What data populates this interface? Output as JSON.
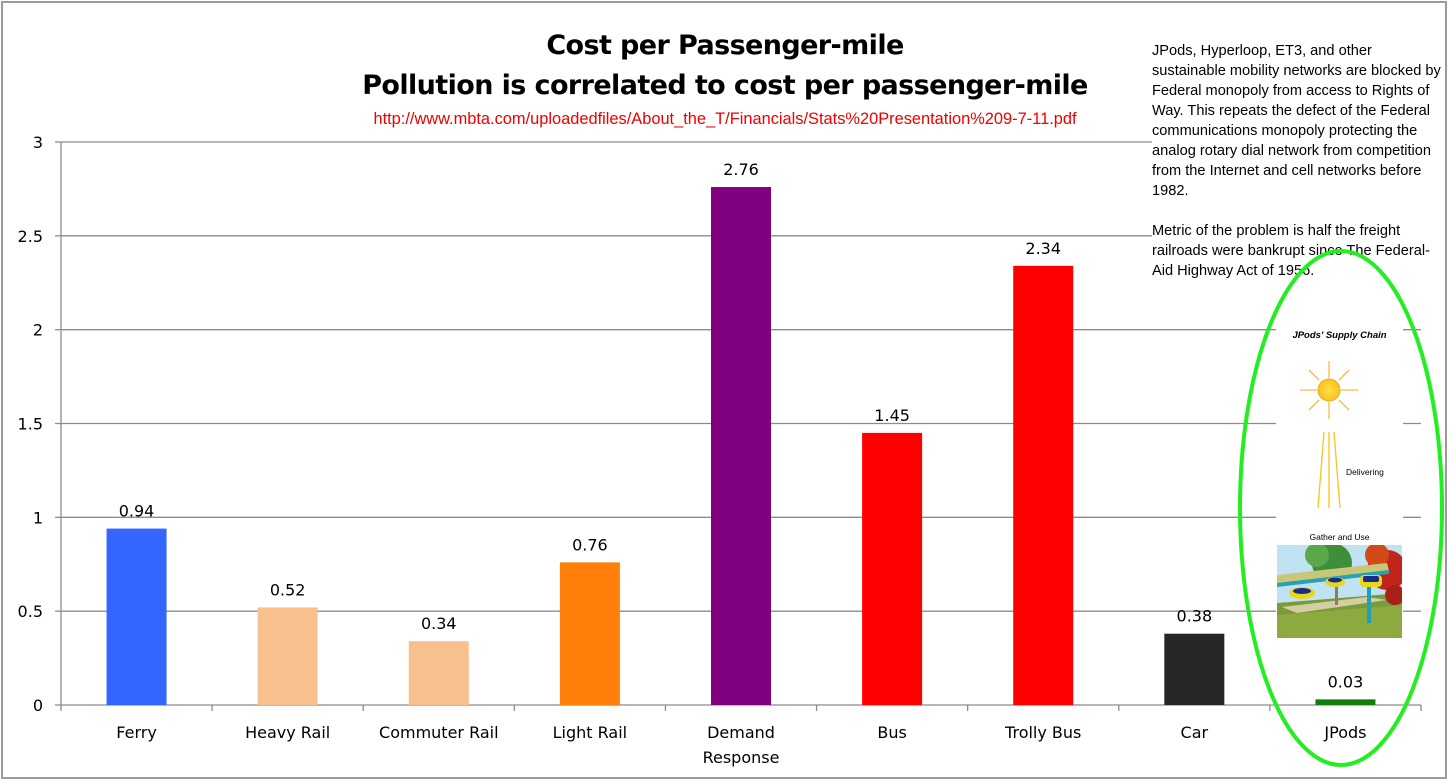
{
  "chart_data": {
    "type": "bar",
    "title": "Cost per Passenger-mile",
    "subtitle": "Pollution is correlated to cost per passenger-mile",
    "source": "http://www.mbta.com/uploadedfiles/About_the_T/Financials/Stats%20Presentation%209-7-11.pdf",
    "xlabel": "",
    "ylabel": "",
    "ylim": [
      0,
      3
    ],
    "yticks": [
      "0",
      "0.5",
      "1",
      "1.5",
      "2",
      "2.5",
      "3"
    ],
    "ytick_values": [
      0,
      0.5,
      1,
      1.5,
      2,
      2.5,
      3
    ],
    "grid": true,
    "legend": "none",
    "categories": [
      [
        "Ferry"
      ],
      [
        "Heavy Rail"
      ],
      [
        "Commuter Rail"
      ],
      [
        "Light Rail"
      ],
      [
        "Demand",
        "Response"
      ],
      [
        "Bus"
      ],
      [
        "Trolly Bus"
      ],
      [
        "Car"
      ],
      [
        "JPods"
      ]
    ],
    "values": [
      0.94,
      0.52,
      0.34,
      0.76,
      2.76,
      1.45,
      2.34,
      0.38,
      0.03
    ],
    "value_labels": [
      "0.94",
      "0.52",
      "0.34",
      "0.76",
      "2.76",
      "1.45",
      "2.34",
      "0.38",
      "0.03"
    ],
    "colors": [
      "#3366ff",
      "#f9c08f",
      "#f9c08f",
      "#ff7f0a",
      "#800080",
      "#ff0000",
      "#ff0000",
      "#262626",
      "#0f7f0f"
    ]
  },
  "annotation": {
    "paragraphs": [
      "JPods, Hyperloop, ET3, and other sustainable mobility networks are blocked by Federal monopoly from access to Rights of Way. This repeats the defect of the Federal communications monopoly protecting the analog rotary dial network from competition from the Internet and cell networks before 1982.",
      "Metric of the problem is half the freight railroads were bankrupt since The Federal-Aid Highway Act of 1956."
    ],
    "highlight_color": "#22ee22"
  },
  "inset": {
    "title": "JPods' Supply Chain",
    "delivering_label": "Delivering",
    "gather_label": "Gather and Use",
    "icons": [
      "sun-icon",
      "light-rays-icon",
      "jpods-rail-photo"
    ]
  }
}
